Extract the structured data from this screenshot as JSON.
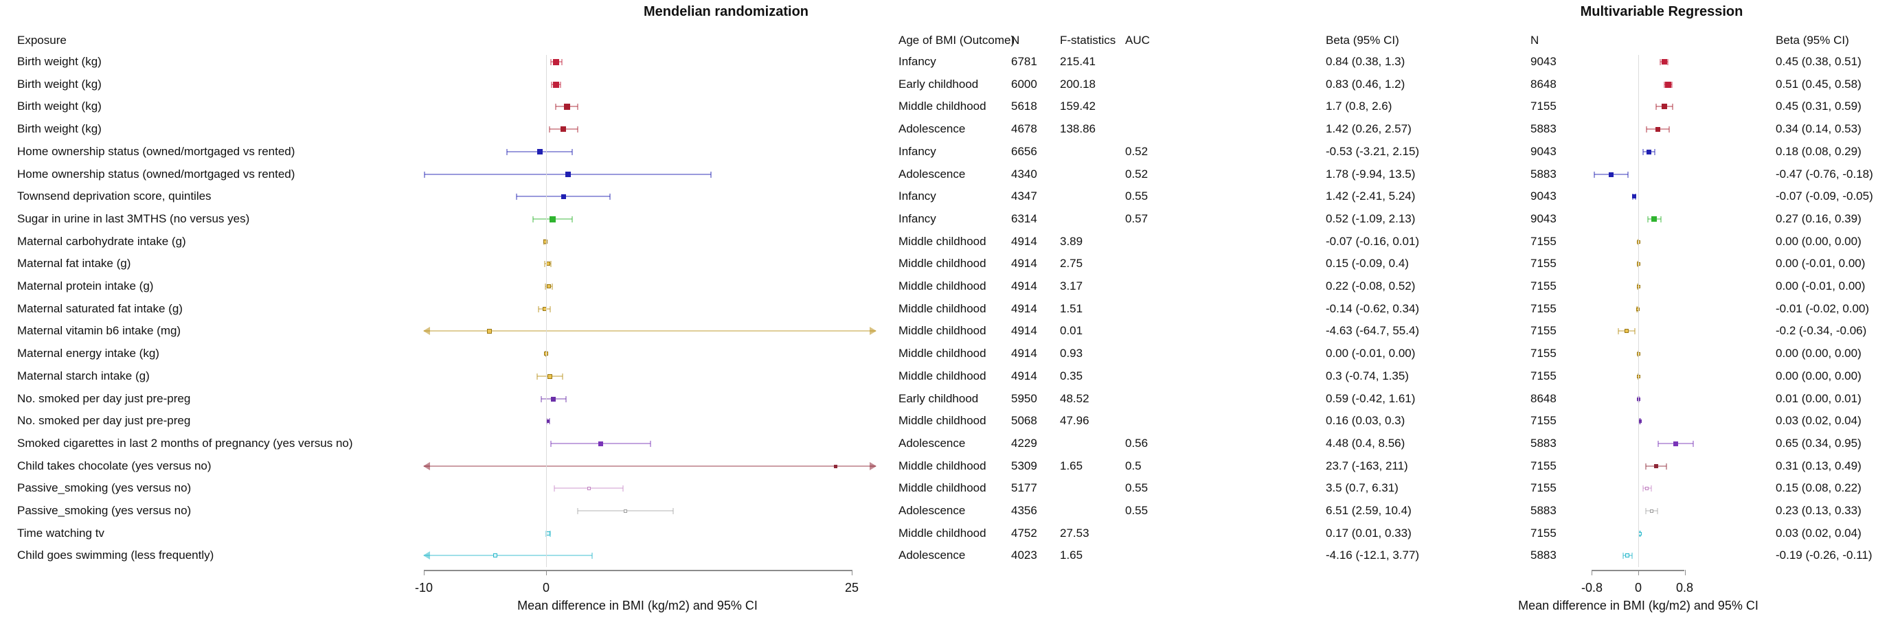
{
  "chart_data": {
    "type": "scatter",
    "subtype": "two-panel forest plot with embedded table",
    "panels": [
      {
        "title": "Mendelian randomization",
        "xlabel": "Mean difference in BMI (kg/m2) and 95% CI",
        "xlim": [
          -10,
          25
        ],
        "xticks": [
          -10,
          0,
          25
        ],
        "tick_labels": [
          "-10",
          "0",
          "25"
        ]
      },
      {
        "title": "Multivariable Regression",
        "xlabel": "Mean difference in BMI (kg/m2) and 95% CI",
        "xlim": [
          -0.8,
          0.8
        ],
        "xticks": [
          -0.8,
          0,
          0.8
        ],
        "tick_labels": [
          "-0.8",
          "0",
          "0.8"
        ]
      }
    ],
    "headers": {
      "exposure": "Exposure",
      "age": "Age of BMI (Outcome)",
      "n_mr": "N",
      "f": "F-statistics",
      "auc": "AUC",
      "beta_mr": "Beta (95% CI)",
      "n_mv": "N",
      "beta_mv": "Beta (95% CI)"
    },
    "rows": [
      {
        "exposure": "Birth weight (kg)",
        "age": "Infancy",
        "n_mr": "6781",
        "f": "215.41",
        "auc": "",
        "beta_mr": "0.84 (0.38, 1.3)",
        "mr": [
          0.84,
          0.38,
          1.3
        ],
        "n_mv": "9043",
        "beta_mv": "0.45 (0.38, 0.51)",
        "mv": [
          0.45,
          0.38,
          0.51
        ],
        "color": "#c01f3a",
        "fill": "#c01f3a",
        "stroke": "#c01f3a",
        "sizes": [
          9,
          8
        ]
      },
      {
        "exposure": "Birth weight (kg)",
        "age": "Early childhood",
        "n_mr": "6000",
        "f": "200.18",
        "auc": "",
        "beta_mr": "0.83 (0.46, 1.2)",
        "mr": [
          0.83,
          0.46,
          1.2
        ],
        "n_mv": "8648",
        "beta_mv": "0.51 (0.45, 0.58)",
        "mv": [
          0.51,
          0.45,
          0.58
        ],
        "color": "#c01f3a",
        "fill": "#c01f3a",
        "stroke": "#c01f3a",
        "sizes": [
          9,
          9
        ]
      },
      {
        "exposure": "Birth weight (kg)",
        "age": "Middle childhood",
        "n_mr": "5618",
        "f": "159.42",
        "auc": "",
        "beta_mr": "1.7 (0.8, 2.6)",
        "mr": [
          1.7,
          0.8,
          2.6
        ],
        "n_mv": "7155",
        "beta_mv": "0.45 (0.31, 0.59)",
        "mv": [
          0.45,
          0.31,
          0.59
        ],
        "color": "#a81e2f",
        "fill": "#a81e2f",
        "stroke": "#a81e2f",
        "sizes": [
          9,
          8
        ]
      },
      {
        "exposure": "Birth weight (kg)",
        "age": "Adolescence",
        "n_mr": "4678",
        "f": "138.86",
        "auc": "",
        "beta_mr": "1.42 (0.26, 2.57)",
        "mr": [
          1.42,
          0.26,
          2.57
        ],
        "n_mv": "5883",
        "beta_mv": "0.34 (0.14, 0.53)",
        "mv": [
          0.34,
          0.14,
          0.53
        ],
        "color": "#a81e2f",
        "fill": "#a81e2f",
        "stroke": "#a81e2f",
        "sizes": [
          8,
          7
        ]
      },
      {
        "exposure": "Home ownership status (owned/mortgaged vs rented)",
        "age": "Infancy",
        "n_mr": "6656",
        "f": "",
        "auc": "0.52",
        "beta_mr": "-0.53 (-3.21, 2.15)",
        "mr": [
          -0.53,
          -3.21,
          2.15
        ],
        "n_mv": "9043",
        "beta_mv": "0.18 (0.08, 0.29)",
        "mv": [
          0.18,
          0.08,
          0.29
        ],
        "color": "#2020b2",
        "fill": "#2020b2",
        "stroke": "#2020b2",
        "sizes": [
          8,
          7
        ]
      },
      {
        "exposure": "Home ownership status (owned/mortgaged vs rented)",
        "age": "Adolescence",
        "n_mr": "4340",
        "f": "",
        "auc": "0.52",
        "beta_mr": "1.78 (-9.94, 13.5)",
        "mr": [
          1.78,
          -9.94,
          13.5
        ],
        "n_mv": "5883",
        "beta_mv": "-0.47 (-0.76, -0.18)",
        "mv": [
          -0.47,
          -0.76,
          -0.18
        ],
        "color": "#2020b2",
        "fill": "#2020b2",
        "stroke": "#2020b2",
        "sizes": [
          8,
          7
        ]
      },
      {
        "exposure": "Townsend deprivation score, quintiles",
        "age": "Infancy",
        "n_mr": "4347",
        "f": "",
        "auc": "0.55",
        "beta_mr": "1.42 (-2.41, 5.24)",
        "mr": [
          1.42,
          -2.41,
          5.24
        ],
        "n_mv": "9043",
        "beta_mv": "-0.07 (-0.09, -0.05)",
        "mv": [
          -0.07,
          -0.09,
          -0.05
        ],
        "color": "#2020b2",
        "fill": "#2020b2",
        "stroke": "#2020b2",
        "sizes": [
          7,
          6
        ]
      },
      {
        "exposure": "Sugar in urine in last 3MTHS (no versus yes)",
        "age": "Infancy",
        "n_mr": "6314",
        "f": "",
        "auc": "0.57",
        "beta_mr": "0.52 (-1.09, 2.13)",
        "mr": [
          0.52,
          -1.09,
          2.13
        ],
        "n_mv": "9043",
        "beta_mv": "0.27 (0.16, 0.39)",
        "mv": [
          0.27,
          0.16,
          0.39
        ],
        "color": "#2fb42f",
        "fill": "#2fb42f",
        "stroke": "#2fb42f",
        "sizes": [
          9,
          8
        ]
      },
      {
        "exposure": "Maternal carbohydrate intake (g)",
        "age": "Middle childhood",
        "n_mr": "4914",
        "f": "3.89",
        "auc": "",
        "beta_mr": "-0.07 (-0.16, 0.01)",
        "mr": [
          -0.07,
          -0.16,
          0.01
        ],
        "n_mv": "7155",
        "beta_mv": "0.00 (0.00, 0.00)",
        "mv": [
          0.0,
          0.0,
          0.0
        ],
        "color": "#b9901a",
        "fill": "#ecc452",
        "stroke": "#9a7712",
        "sizes": [
          6,
          5
        ]
      },
      {
        "exposure": "Maternal fat intake (g)",
        "age": "Middle childhood",
        "n_mr": "4914",
        "f": "2.75",
        "auc": "",
        "beta_mr": "0.15 (-0.09, 0.4)",
        "mr": [
          0.15,
          -0.09,
          0.4
        ],
        "n_mv": "7155",
        "beta_mv": "0.00 (-0.01, 0.00)",
        "mv": [
          0.0,
          -0.01,
          0.0
        ],
        "color": "#b9901a",
        "fill": "#ecc452",
        "stroke": "#9a7712",
        "sizes": [
          6,
          5
        ]
      },
      {
        "exposure": "Maternal protein intake (g)",
        "age": "Middle childhood",
        "n_mr": "4914",
        "f": "3.17",
        "auc": "",
        "beta_mr": "0.22 (-0.08, 0.52)",
        "mr": [
          0.22,
          -0.08,
          0.52
        ],
        "n_mv": "7155",
        "beta_mv": "0.00 (-0.01, 0.00)",
        "mv": [
          0.0,
          -0.01,
          0.0
        ],
        "color": "#b9901a",
        "fill": "#ecc452",
        "stroke": "#9a7712",
        "sizes": [
          6,
          5
        ]
      },
      {
        "exposure": "Maternal saturated fat intake (g)",
        "age": "Middle childhood",
        "n_mr": "4914",
        "f": "1.51",
        "auc": "",
        "beta_mr": "-0.14 (-0.62, 0.34)",
        "mr": [
          -0.14,
          -0.62,
          0.34
        ],
        "n_mv": "7155",
        "beta_mv": "-0.01 (-0.02, 0.00)",
        "mv": [
          -0.01,
          -0.02,
          0.0
        ],
        "color": "#b9901a",
        "fill": "#ecc452",
        "stroke": "#9a7712",
        "sizes": [
          6,
          5
        ]
      },
      {
        "exposure": "Maternal vitamin b6 intake (mg)",
        "age": "Middle childhood",
        "n_mr": "4914",
        "f": "0.01",
        "auc": "",
        "beta_mr": "-4.63 (-64.7, 55.4)",
        "mr": [
          -4.63,
          -64.7,
          55.4
        ],
        "n_mv": "7155",
        "beta_mv": "-0.2 (-0.34, -0.06)",
        "mv": [
          -0.2,
          -0.34,
          -0.06
        ],
        "color": "#b9901a",
        "fill": "#ecc452",
        "stroke": "#9a7712",
        "sizes": [
          7,
          6
        ]
      },
      {
        "exposure": "Maternal energy intake (kg)",
        "age": "Middle childhood",
        "n_mr": "4914",
        "f": "0.93",
        "auc": "",
        "beta_mr": "0.00 (-0.01, 0.00)",
        "mr": [
          0.0,
          -0.01,
          0.0
        ],
        "n_mv": "7155",
        "beta_mv": "0.00 (0.00, 0.00)",
        "mv": [
          0.0,
          0.0,
          0.0
        ],
        "color": "#b9901a",
        "fill": "#ecc452",
        "stroke": "#9a7712",
        "sizes": [
          6,
          5
        ]
      },
      {
        "exposure": "Maternal starch intake (g)",
        "age": "Middle childhood",
        "n_mr": "4914",
        "f": "0.35",
        "auc": "",
        "beta_mr": "0.3 (-0.74, 1.35)",
        "mr": [
          0.3,
          -0.74,
          1.35
        ],
        "n_mv": "7155",
        "beta_mv": "0.00 (0.00, 0.00)",
        "mv": [
          0.0,
          0.0,
          0.0
        ],
        "color": "#b9901a",
        "fill": "#ecc452",
        "stroke": "#9a7712",
        "sizes": [
          7,
          5
        ]
      },
      {
        "exposure": "No. smoked per day just pre-preg",
        "age": "Early childhood",
        "n_mr": "5950",
        "f": "48.52",
        "auc": "",
        "beta_mr": "0.59 (-0.42, 1.61)",
        "mr": [
          0.59,
          -0.42,
          1.61
        ],
        "n_mv": "8648",
        "beta_mv": "0.01 (0.00, 0.01)",
        "mv": [
          0.01,
          0.0,
          0.01
        ],
        "color": "#6b2fa8",
        "fill": "#6b2fa8",
        "stroke": "#6b2fa8",
        "sizes": [
          7,
          5
        ]
      },
      {
        "exposure": "No. smoked per day just pre-preg",
        "age": "Middle childhood",
        "n_mr": "5068",
        "f": "47.96",
        "auc": "",
        "beta_mr": "0.16 (0.03, 0.3)",
        "mr": [
          0.16,
          0.03,
          0.3
        ],
        "n_mv": "7155",
        "beta_mv": "0.03 (0.02, 0.04)",
        "mv": [
          0.03,
          0.02,
          0.04
        ],
        "color": "#6b2fa8",
        "fill": "#6b2fa8",
        "stroke": "#6b2fa8",
        "sizes": [
          5,
          5
        ]
      },
      {
        "exposure": "Smoked cigarettes in last 2 months of pregnancy (yes versus no)",
        "age": "Adolescence",
        "n_mr": "4229",
        "f": "",
        "auc": "0.56",
        "beta_mr": "4.48 (0.4, 8.56)",
        "mr": [
          4.48,
          0.4,
          8.56
        ],
        "n_mv": "5883",
        "beta_mv": "0.65 (0.34, 0.95)",
        "mv": [
          0.65,
          0.34,
          0.95
        ],
        "color": "#7a35b8",
        "fill": "#7a35b8",
        "stroke": "#7a35b8",
        "sizes": [
          7,
          7
        ]
      },
      {
        "exposure": "Child takes chocolate (yes versus no)",
        "age": "Middle childhood",
        "n_mr": "5309",
        "f": "1.65",
        "auc": "0.5",
        "beta_mr": "23.7 (-163, 211)",
        "mr": [
          23.7,
          -163,
          211
        ],
        "n_mv": "7155",
        "beta_mv": "0.31 (0.13, 0.49)",
        "mv": [
          0.31,
          0.13,
          0.49
        ],
        "color": "#8e2838",
        "fill": "#8e2838",
        "stroke": "#8e2838",
        "sizes": [
          5,
          6
        ]
      },
      {
        "exposure": "Passive_smoking (yes versus no)",
        "age": "Middle childhood",
        "n_mr": "5177",
        "f": "",
        "auc": "0.55",
        "beta_mr": "3.5 (0.7, 6.31)",
        "mr": [
          3.5,
          0.7,
          6.31
        ],
        "n_mv": "7155",
        "beta_mv": "0.15 (0.08, 0.22)",
        "mv": [
          0.15,
          0.08,
          0.22
        ],
        "color": "#c98fc9",
        "fill": "#f8ecf8",
        "stroke": "#c287c2",
        "sizes": [
          5,
          5
        ]
      },
      {
        "exposure": "Passive_smoking (yes versus no)",
        "age": "Adolescence",
        "n_mr": "4356",
        "f": "",
        "auc": "0.55",
        "beta_mr": "6.51 (2.59, 10.4)",
        "mr": [
          6.51,
          2.59,
          10.4
        ],
        "n_mv": "5883",
        "beta_mv": "0.23 (0.13, 0.33)",
        "mv": [
          0.23,
          0.13,
          0.33
        ],
        "color": "#ababab",
        "fill": "#f4f4f4",
        "stroke": "#9f9f9f",
        "sizes": [
          5,
          5
        ]
      },
      {
        "exposure": "Time watching tv",
        "age": "Middle childhood",
        "n_mr": "4752",
        "f": "27.53",
        "auc": "",
        "beta_mr": "0.17 (0.01, 0.33)",
        "mr": [
          0.17,
          0.01,
          0.33
        ],
        "n_mv": "7155",
        "beta_mv": "0.03 (0.02, 0.04)",
        "mv": [
          0.03,
          0.02,
          0.04
        ],
        "color": "#2ab9cb",
        "fill": "#dff5f8",
        "stroke": "#2ab9cb",
        "sizes": [
          6,
          5
        ]
      },
      {
        "exposure": "Child goes swimming (less frequently)",
        "age": "Adolescence",
        "n_mr": "4023",
        "f": "1.65",
        "auc": "",
        "beta_mr": "-4.16 (-12.1, 3.77)",
        "mr": [
          -4.16,
          -12.1,
          3.77
        ],
        "n_mv": "5883",
        "beta_mv": "-0.19 (-0.26, -0.11)",
        "mv": [
          -0.19,
          -0.26,
          -0.11
        ],
        "color": "#2ab9cb",
        "fill": "#dff5f8",
        "stroke": "#2ab9cb",
        "sizes": [
          6,
          6
        ]
      }
    ]
  }
}
